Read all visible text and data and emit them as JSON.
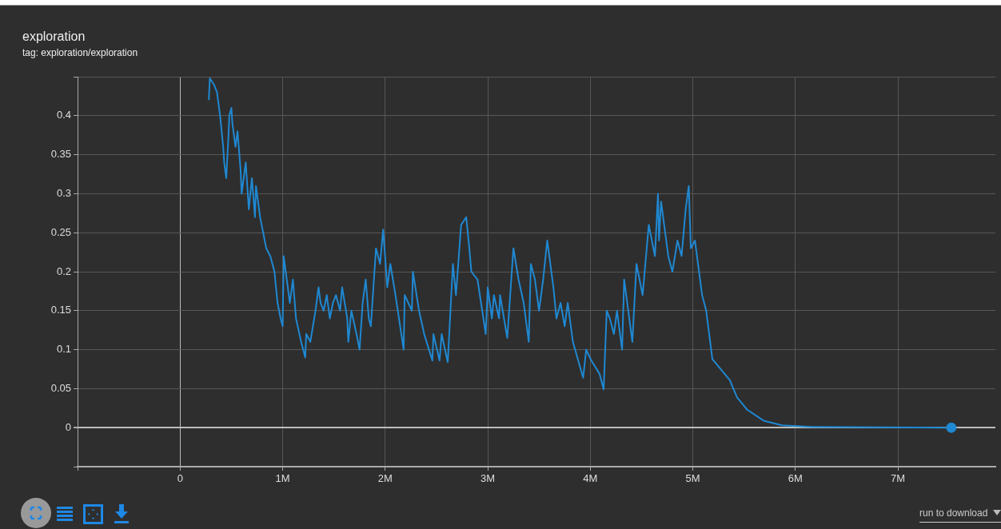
{
  "chart_data": {
    "type": "line",
    "title": "exploration",
    "subtitle": "tag: exploration/exploration",
    "annotations": [
      "run to download"
    ],
    "xlim": [
      -1000000,
      7950000
    ],
    "xticks": [
      {
        "value": -1000000,
        "label": null
      },
      0,
      {
        "value": 1000000,
        "label": "1M"
      },
      {
        "value": 2000000,
        "label": "2M"
      },
      {
        "value": 3000000,
        "label": "3M"
      },
      {
        "value": 4000000,
        "label": "4M"
      },
      {
        "value": 5000000,
        "label": "5M"
      },
      {
        "value": 6000000,
        "label": "6M"
      },
      {
        "value": 7000000,
        "label": "7M"
      }
    ],
    "ylim": [
      -0.05,
      0.45
    ],
    "yticks": [
      {
        "value": -0.05,
        "label": null
      },
      0,
      0.05,
      0.1,
      0.15,
      0.2,
      0.25,
      0.3,
      0.35,
      0.4,
      {
        "value": 0.45,
        "label": null
      }
    ],
    "grid": true,
    "marker": "none",
    "line_style": "solid",
    "series": [
      {
        "color": "#1f88d2",
        "x": [
          280000,
          290000,
          330000,
          360000,
          390000,
          420000,
          430000,
          450000,
          470000,
          480000,
          500000,
          510000,
          540000,
          560000,
          590000,
          600000,
          640000,
          670000,
          700000,
          730000,
          740000,
          780000,
          840000,
          880000,
          920000,
          950000,
          980000,
          1000000,
          1010000,
          1040000,
          1070000,
          1100000,
          1130000,
          1180000,
          1220000,
          1230000,
          1270000,
          1320000,
          1350000,
          1370000,
          1400000,
          1430000,
          1460000,
          1490000,
          1520000,
          1560000,
          1580000,
          1630000,
          1640000,
          1670000,
          1720000,
          1750000,
          1780000,
          1810000,
          1840000,
          1860000,
          1890000,
          1910000,
          1950000,
          1980000,
          2020000,
          2050000,
          2100000,
          2180000,
          2190000,
          2260000,
          2270000,
          2330000,
          2380000,
          2460000,
          2470000,
          2530000,
          2550000,
          2610000,
          2660000,
          2690000,
          2740000,
          2790000,
          2820000,
          2840000,
          2900000,
          2980000,
          3000000,
          3040000,
          3060000,
          3110000,
          3120000,
          3190000,
          3250000,
          3300000,
          3350000,
          3400000,
          3420000,
          3460000,
          3500000,
          3540000,
          3580000,
          3640000,
          3670000,
          3710000,
          3750000,
          3780000,
          3830000,
          3930000,
          3960000,
          4010000,
          4090000,
          4130000,
          4160000,
          4190000,
          4230000,
          4260000,
          4310000,
          4330000,
          4410000,
          4450000,
          4510000,
          4570000,
          4630000,
          4660000,
          4670000,
          4690000,
          4760000,
          4800000,
          4850000,
          4890000,
          4930000,
          4960000,
          4980000,
          5020000,
          5090000,
          5130000,
          5190000,
          5360000,
          5430000,
          5530000,
          5690000,
          5870000,
          6160000,
          7520000
        ],
        "values": [
          0.42,
          0.448,
          0.44,
          0.43,
          0.4,
          0.36,
          0.34,
          0.32,
          0.37,
          0.4,
          0.41,
          0.39,
          0.36,
          0.38,
          0.33,
          0.3,
          0.34,
          0.28,
          0.32,
          0.27,
          0.31,
          0.27,
          0.23,
          0.22,
          0.2,
          0.16,
          0.14,
          0.13,
          0.22,
          0.19,
          0.16,
          0.19,
          0.14,
          0.11,
          0.09,
          0.12,
          0.11,
          0.15,
          0.18,
          0.16,
          0.15,
          0.17,
          0.14,
          0.16,
          0.17,
          0.15,
          0.18,
          0.14,
          0.11,
          0.15,
          0.12,
          0.1,
          0.16,
          0.19,
          0.14,
          0.13,
          0.19,
          0.23,
          0.21,
          0.254,
          0.18,
          0.21,
          0.17,
          0.1,
          0.17,
          0.15,
          0.2,
          0.15,
          0.12,
          0.086,
          0.12,
          0.086,
          0.12,
          0.084,
          0.21,
          0.17,
          0.26,
          0.27,
          0.23,
          0.2,
          0.19,
          0.12,
          0.18,
          0.14,
          0.17,
          0.14,
          0.17,
          0.115,
          0.23,
          0.19,
          0.16,
          0.11,
          0.21,
          0.19,
          0.15,
          0.19,
          0.24,
          0.18,
          0.14,
          0.16,
          0.13,
          0.16,
          0.11,
          0.064,
          0.1,
          0.086,
          0.069,
          0.049,
          0.15,
          0.14,
          0.12,
          0.15,
          0.1,
          0.19,
          0.11,
          0.21,
          0.17,
          0.26,
          0.22,
          0.3,
          0.24,
          0.29,
          0.22,
          0.2,
          0.24,
          0.22,
          0.28,
          0.31,
          0.23,
          0.24,
          0.17,
          0.15,
          0.088,
          0.061,
          0.039,
          0.023,
          0.009,
          0.003,
          0.001,
          0
        ]
      },
      {
        "color": "#1f88d2",
        "type": "scatter",
        "marker": "circle",
        "x": [
          7520000
        ],
        "values": [
          0
        ]
      }
    ]
  }
}
